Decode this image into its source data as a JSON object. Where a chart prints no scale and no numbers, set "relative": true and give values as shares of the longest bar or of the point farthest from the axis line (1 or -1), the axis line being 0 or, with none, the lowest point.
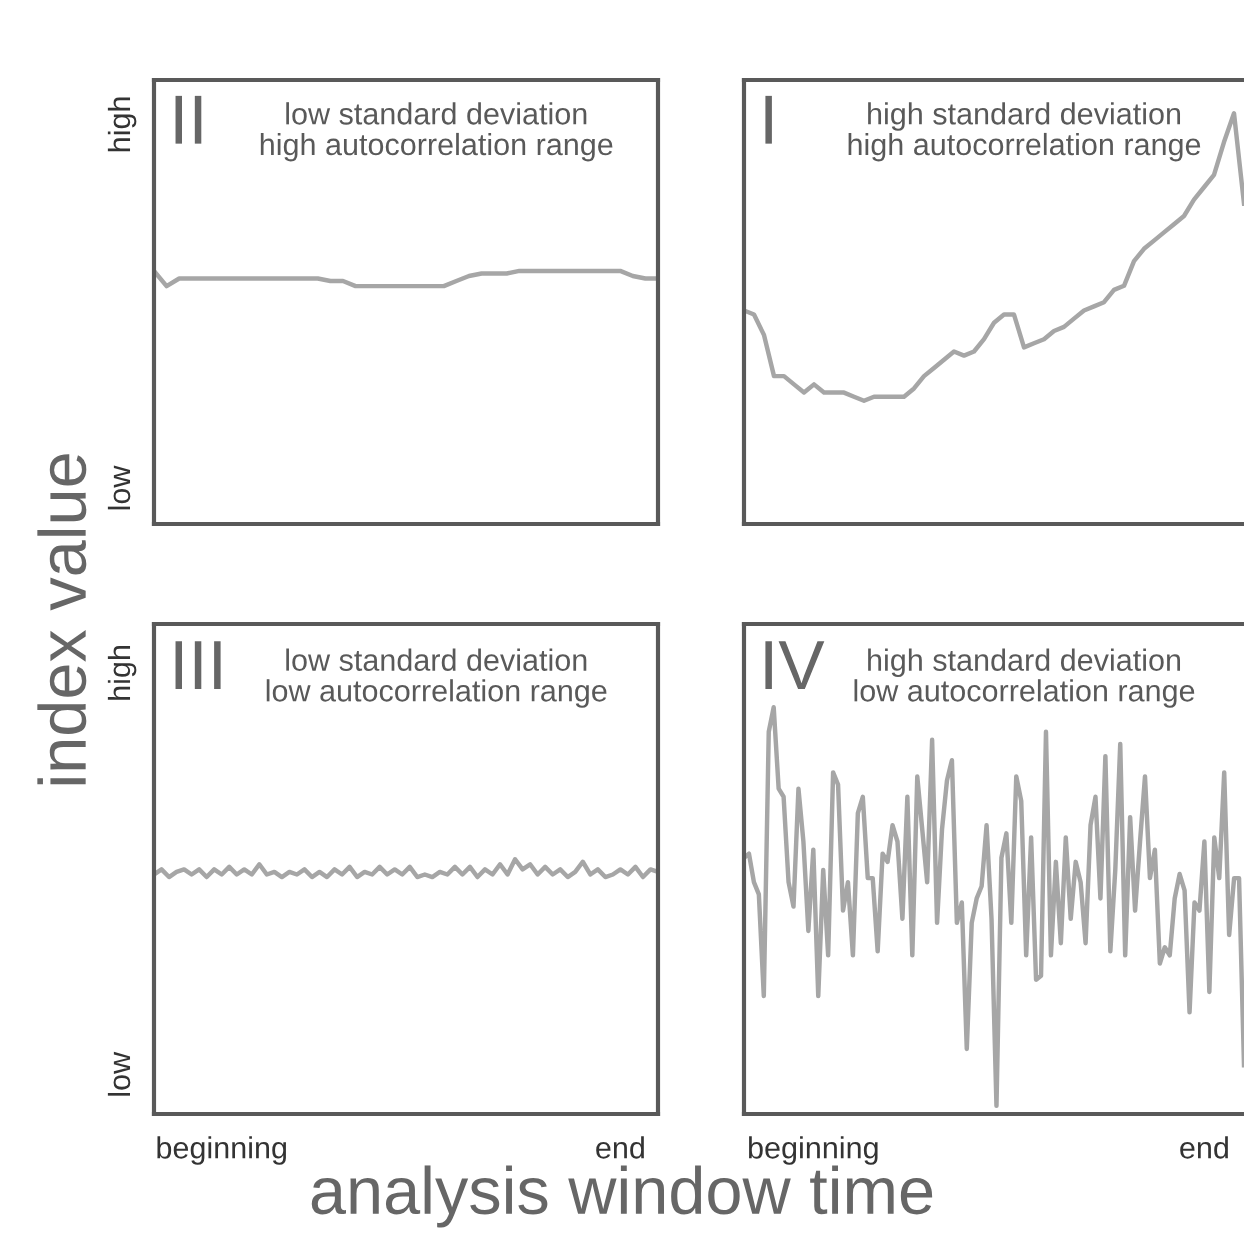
{
  "chart_data": [
    {
      "type": "line",
      "title": "II",
      "subtitle": "low standard deviation\nhigh autocorrelation range",
      "ylabel": "index value",
      "relative": true,
      "annotations": [
        "low",
        "high"
      ],
      "categories": [
        null,
        null,
        null,
        null,
        null,
        null,
        null,
        null,
        null,
        null,
        null,
        null,
        null,
        null,
        null,
        null,
        null,
        null,
        null,
        null,
        null,
        null,
        null,
        null,
        null,
        null,
        null,
        null,
        null,
        null,
        null,
        null,
        null,
        null,
        null,
        null,
        null,
        null,
        null,
        null,
        null
      ],
      "series": [
        {
          "color": "#a6a6a6",
          "values": [
            1.0,
            0.94,
            0.97,
            0.97,
            0.97,
            0.97,
            0.97,
            0.97,
            0.97,
            0.97,
            0.97,
            0.97,
            0.97,
            0.97,
            0.96,
            0.96,
            0.94,
            0.94,
            0.94,
            0.94,
            0.94,
            0.94,
            0.94,
            0.94,
            0.96,
            0.98,
            0.99,
            0.99,
            0.99,
            1.0,
            1.0,
            1.0,
            1.0,
            1.0,
            1.0,
            1.0,
            1.0,
            1.0,
            0.98,
            0.97,
            0.97
          ]
        }
      ]
    },
    {
      "type": "line",
      "title": "I",
      "subtitle": "high standard deviation\nhigh autocorrelation range",
      "relative": true,
      "categories": [
        null,
        null,
        null,
        null,
        null,
        null,
        null,
        null,
        null,
        null,
        null,
        null,
        null,
        null,
        null,
        null,
        null,
        null,
        null,
        null,
        null,
        null,
        null,
        null,
        null,
        null,
        null,
        null,
        null,
        null,
        null,
        null,
        null,
        null,
        null,
        null,
        null,
        null,
        null,
        null,
        null,
        null,
        null,
        null,
        null,
        null,
        null,
        null,
        null,
        null,
        null
      ],
      "series": [
        {
          "color": "#a6a6a6",
          "values": [
            0.52,
            0.51,
            0.46,
            0.36,
            0.36,
            0.34,
            0.32,
            0.34,
            0.32,
            0.32,
            0.32,
            0.31,
            0.3,
            0.31,
            0.31,
            0.31,
            0.31,
            0.33,
            0.36,
            0.38,
            0.4,
            0.42,
            0.41,
            0.42,
            0.45,
            0.49,
            0.51,
            0.51,
            0.43,
            0.44,
            0.45,
            0.47,
            0.48,
            0.5,
            0.52,
            0.53,
            0.54,
            0.57,
            0.58,
            0.64,
            0.67,
            0.69,
            0.71,
            0.73,
            0.75,
            0.79,
            0.82,
            0.85,
            0.93,
            1.0,
            0.78
          ]
        }
      ]
    },
    {
      "type": "line",
      "title": "III",
      "subtitle": "low standard deviation\nlow autocorrelation range",
      "xlabel": "analysis window time",
      "relative": true,
      "annotations": [
        "low",
        "high"
      ],
      "categories": [
        null,
        null,
        null,
        null,
        null,
        null,
        null,
        null,
        null,
        "beginning",
        null,
        null,
        null,
        null,
        null,
        null,
        null,
        null,
        null,
        null,
        null,
        null,
        null,
        null,
        null,
        null,
        null,
        null,
        null,
        null,
        null,
        null,
        null,
        null,
        null,
        null,
        null,
        null,
        null,
        null,
        null,
        null,
        null,
        null,
        null,
        null,
        null,
        null,
        null,
        null,
        null,
        null,
        null,
        null,
        null,
        null,
        null,
        null,
        null,
        null,
        null,
        null,
        "end",
        null,
        null,
        null,
        null,
        null
      ],
      "series": [
        {
          "color": "#a6a6a6",
          "values": [
            0.94,
            0.96,
            0.93,
            0.95,
            0.96,
            0.94,
            0.96,
            0.93,
            0.96,
            0.94,
            0.97,
            0.94,
            0.96,
            0.94,
            0.98,
            0.94,
            0.95,
            0.93,
            0.95,
            0.94,
            0.96,
            0.93,
            0.95,
            0.93,
            0.96,
            0.94,
            0.97,
            0.93,
            0.95,
            0.94,
            0.97,
            0.94,
            0.96,
            0.94,
            0.97,
            0.93,
            0.94,
            0.93,
            0.95,
            0.94,
            0.97,
            0.94,
            0.97,
            0.93,
            0.96,
            0.94,
            0.98,
            0.94,
            1.0,
            0.96,
            0.98,
            0.94,
            0.97,
            0.94,
            0.96,
            0.93,
            0.95,
            0.99,
            0.94,
            0.96,
            0.93,
            0.94,
            0.96,
            0.94,
            0.97,
            0.93,
            0.96,
            0.95
          ]
        }
      ]
    },
    {
      "type": "line",
      "title": "IV",
      "subtitle": "high standard deviation\nlow autocorrelation range",
      "relative": true,
      "categories": [
        null,
        null,
        null,
        null,
        null,
        null,
        null,
        null,
        null,
        null,
        null,
        null,
        null,
        null,
        "beginning",
        null,
        null,
        null,
        null,
        null,
        null,
        null,
        null,
        null,
        null,
        null,
        null,
        null,
        null,
        null,
        null,
        null,
        null,
        null,
        null,
        null,
        null,
        null,
        null,
        null,
        null,
        null,
        null,
        null,
        null,
        null,
        null,
        null,
        null,
        null,
        null,
        null,
        null,
        null,
        null,
        null,
        null,
        null,
        null,
        null,
        null,
        null,
        null,
        null,
        null,
        null,
        null,
        null,
        null,
        null,
        null,
        null,
        null,
        null,
        null,
        null,
        null,
        null,
        null,
        null,
        null,
        null,
        null,
        null,
        null,
        null,
        null,
        null,
        null,
        null,
        null,
        null,
        null,
        "end",
        null,
        null,
        null,
        null,
        null,
        null,
        null,
        null
      ],
      "series": [
        {
          "color": "#a6a6a6",
          "values": [
            0.63,
            0.64,
            0.57,
            0.54,
            0.29,
            0.94,
            1.0,
            0.8,
            0.78,
            0.57,
            0.51,
            0.8,
            0.67,
            0.45,
            0.65,
            0.29,
            0.6,
            0.39,
            0.84,
            0.81,
            0.5,
            0.57,
            0.39,
            0.74,
            0.78,
            0.58,
            0.58,
            0.4,
            0.64,
            0.62,
            0.71,
            0.67,
            0.48,
            0.78,
            0.39,
            0.83,
            0.7,
            0.57,
            0.92,
            0.47,
            0.7,
            0.82,
            0.87,
            0.47,
            0.52,
            0.16,
            0.47,
            0.53,
            0.56,
            0.71,
            0.48,
            0.02,
            0.63,
            0.69,
            0.47,
            0.83,
            0.77,
            0.39,
            0.68,
            0.33,
            0.34,
            0.94,
            0.39,
            0.62,
            0.42,
            0.68,
            0.48,
            0.62,
            0.57,
            0.42,
            0.71,
            0.78,
            0.53,
            0.88,
            0.4,
            0.6,
            0.91,
            0.39,
            0.73,
            0.5,
            0.67,
            0.83,
            0.58,
            0.65,
            0.37,
            0.41,
            0.39,
            0.53,
            0.59,
            0.55,
            0.25,
            0.52,
            0.5,
            0.67,
            0.3,
            0.68,
            0.58,
            0.84,
            0.44,
            0.58,
            0.58,
            0.12
          ]
        }
      ]
    }
  ]
}
